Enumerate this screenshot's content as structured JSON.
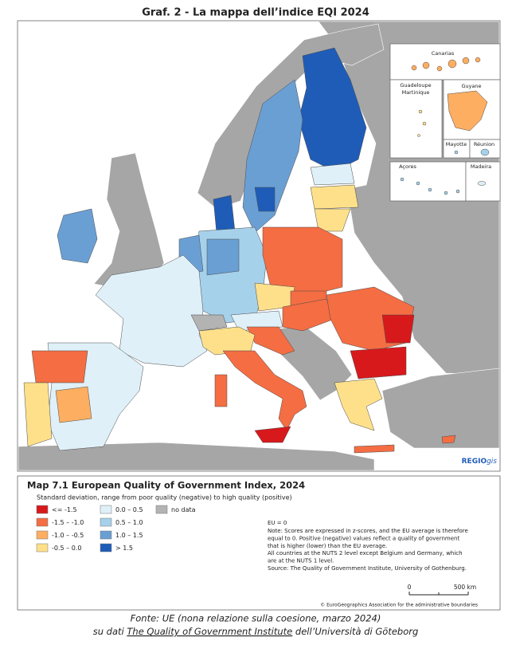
{
  "header": {
    "title": "Graf. 2 - La mappa dell’indice EQI 2024"
  },
  "insets": [
    "Canarias",
    "Guadeloupe",
    "Martinique",
    "Guyane",
    "Mayotte",
    "Réunion",
    "Açores",
    "Madeira"
  ],
  "logo": {
    "bold": "REGIO",
    "italic": "gis"
  },
  "legend": {
    "title": "Map 7.1 European Quality of Government Index, 2024",
    "subtitle": "Standard deviation, range from poor quality (negative) to high quality (positive)",
    "items": [
      {
        "label": "<= -1.5",
        "color": "#d7191c"
      },
      {
        "label": "-1.5 – -1.0",
        "color": "#f46d43"
      },
      {
        "label": "-1.0 – -0.5",
        "color": "#fdae61"
      },
      {
        "label": "-0.5 – 0.0",
        "color": "#fee08b"
      },
      {
        "label": "0.0 – 0.5",
        "color": "#dff0f8"
      },
      {
        "label": "0.5 – 1.0",
        "color": "#a6d1ea"
      },
      {
        "label": "1.0 – 1.5",
        "color": "#6a9fd4"
      },
      {
        "label": "> 1.5",
        "color": "#1f5cb8"
      },
      {
        "label": "no data",
        "color": "#b3b3b3"
      }
    ],
    "notes": [
      "EU = 0",
      "Note: Scores are expressed in z-scores, and the EU average is therefore",
      "equal to 0. Positive (negative) values reflect a quality of government",
      "that is higher (lower) than the EU average.",
      "All countries at the NUTS 2 level except Belgium and Germany, which",
      "are at the NUTS 1 level.",
      "Source: The Quality of Government Institute, University of Gothenburg."
    ],
    "scale": {
      "start": "0",
      "end": "500 km"
    },
    "copyright": "© EuroGeographics Association for the administrative boundaries"
  },
  "source": {
    "line1": "Fonte: UE (nona relazione sulla coesione, marzo 2024)",
    "line2": {
      "before": "su dati ",
      "link": "The Quality of Government Institute",
      "after": " dell’Università di Göteborg"
    }
  }
}
